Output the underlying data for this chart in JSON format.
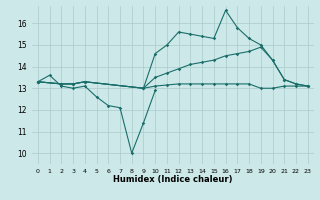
{
  "xlabel": "Humidex (Indice chaleur)",
  "xlim": [
    -0.5,
    23.5
  ],
  "ylim": [
    9.5,
    16.8
  ],
  "yticks": [
    10,
    11,
    12,
    13,
    14,
    15,
    16
  ],
  "xtick_labels": [
    "0",
    "1",
    "2",
    "3",
    "4",
    "5",
    "6",
    "7",
    "8",
    "9",
    "10",
    "11",
    "12",
    "13",
    "14",
    "15",
    "16",
    "17",
    "18",
    "19",
    "20",
    "21",
    "22",
    "23"
  ],
  "bg_color": "#cce8e8",
  "grid_color": "#aacccc",
  "line_color": "#1a6e6a",
  "series": [
    {
      "x": [
        0,
        1,
        2,
        3,
        4,
        5,
        6,
        7,
        8,
        9,
        10
      ],
      "y": [
        13.3,
        13.6,
        13.1,
        13.0,
        13.1,
        12.6,
        12.2,
        12.1,
        10.0,
        11.4,
        12.9
      ]
    },
    {
      "x": [
        0,
        2,
        3,
        4,
        9,
        10,
        11,
        12,
        13,
        14,
        15,
        16,
        17,
        18,
        19,
        20,
        21,
        22,
        23
      ],
      "y": [
        13.3,
        13.2,
        13.2,
        13.3,
        13.0,
        13.1,
        13.15,
        13.2,
        13.2,
        13.2,
        13.2,
        13.2,
        13.2,
        13.2,
        13.0,
        13.0,
        13.1,
        13.1,
        13.1
      ]
    },
    {
      "x": [
        0,
        2,
        3,
        4,
        9,
        10,
        11,
        12,
        13,
        14,
        15,
        16,
        17,
        18,
        19,
        20,
        21,
        22,
        23
      ],
      "y": [
        13.3,
        13.2,
        13.2,
        13.3,
        13.0,
        14.6,
        15.0,
        15.6,
        15.5,
        15.4,
        15.3,
        16.6,
        15.8,
        15.3,
        15.0,
        14.3,
        13.4,
        13.2,
        13.1
      ]
    },
    {
      "x": [
        0,
        2,
        3,
        4,
        9,
        10,
        11,
        12,
        13,
        14,
        15,
        16,
        17,
        18,
        19,
        20,
        21,
        22,
        23
      ],
      "y": [
        13.3,
        13.2,
        13.2,
        13.3,
        13.0,
        13.5,
        13.7,
        13.9,
        14.1,
        14.2,
        14.3,
        14.5,
        14.6,
        14.7,
        14.9,
        14.3,
        13.4,
        13.2,
        13.1
      ]
    }
  ]
}
